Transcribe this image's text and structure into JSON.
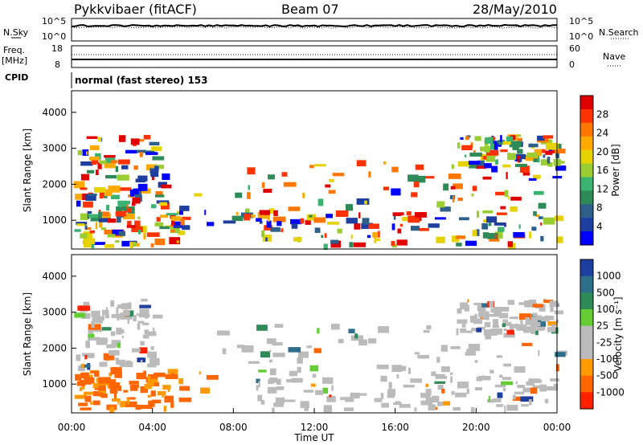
{
  "header": {
    "title": "Pykkvibaer (fitACF)",
    "beam": "Beam 07",
    "date": "28/May/2010"
  },
  "top_panels": {
    "nsky_label": "N.Sky",
    "nsky_ticks": [
      "10^5",
      "10^0"
    ],
    "nsearch_label": "N.Search",
    "nsearch_ticks": [
      "10^5",
      "10^0"
    ],
    "freq_label": "Freq.",
    "freq_unit": "[MHz]",
    "freq_ticks": [
      "18",
      "8"
    ],
    "nave_label": "Nave",
    "nave_ticks": [
      "60",
      "0"
    ],
    "cpid_label": "CPID",
    "cpid_text": "normal (fast stereo) 153"
  },
  "chart_data": [
    {
      "type": "heatmap",
      "name": "power",
      "ylabel": "Slant Range [km]",
      "yticks": [
        1000,
        2000,
        3000,
        4000
      ],
      "ylim": [
        200,
        4600
      ],
      "xlim": [
        0,
        24
      ],
      "colorbar": {
        "label": "Power [dB]",
        "ticks": [
          "28",
          "24",
          "20",
          "16",
          "12",
          "8",
          "4"
        ],
        "colors": [
          "#e00000",
          "#ff3300",
          "#ff7700",
          "#ffaa00",
          "#e6d200",
          "#9acd32",
          "#3cb371",
          "#2e8b57",
          "#2e5f8b",
          "#1f3fa0",
          "#0000ff"
        ]
      }
    },
    {
      "type": "heatmap",
      "name": "velocity",
      "ylabel": "Slant Range [km]",
      "yticks": [
        1000,
        2000,
        3000,
        4000
      ],
      "ylim": [
        200,
        4600
      ],
      "xlim": [
        0,
        24
      ],
      "xticks": [
        "00:00",
        "04:00",
        "08:00",
        "12:00",
        "16:00",
        "20:00",
        "00:00"
      ],
      "xlabel": "Time UT",
      "colorbar": {
        "label": "Velocity [m s⁻¹]",
        "ticks": [
          "1000",
          "500",
          "100",
          "25",
          "-25",
          "-100",
          "-500",
          "-1000"
        ],
        "colors": [
          "#1f3fa0",
          "#2e6e8b",
          "#2e8b57",
          "#66cc33",
          "#bbbbbb",
          "#bbbbbb",
          "#ff9900",
          "#ff6600",
          "#ff2200"
        ]
      }
    }
  ]
}
